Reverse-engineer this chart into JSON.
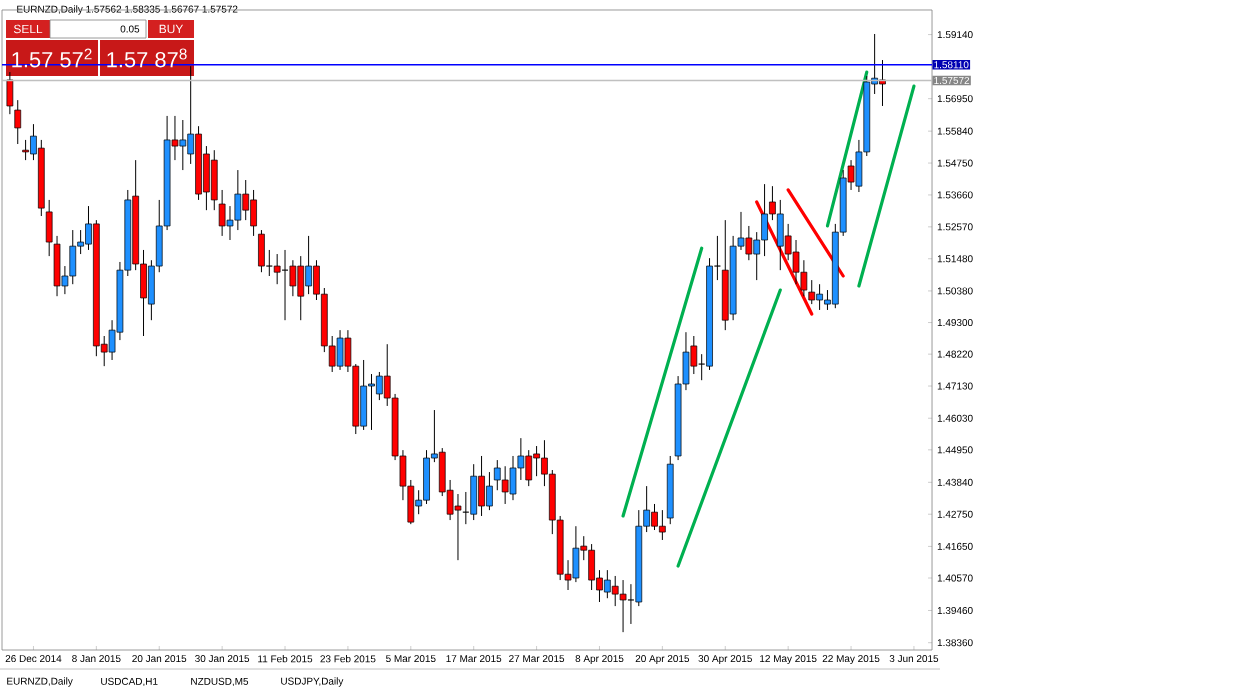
{
  "chart_data": {
    "type": "candlestick",
    "title": "EURNZD,Daily 1.57562 1.58335 1.56767 1.57572",
    "categories": [
      null,
      null,
      null,
      "26 Dec 2014",
      null,
      null,
      null,
      null,
      null,
      null,
      null,
      "8 Jan 2015",
      null,
      null,
      null,
      null,
      null,
      null,
      null,
      "20 Jan 2015",
      null,
      null,
      null,
      null,
      null,
      null,
      null,
      "30 Jan 2015",
      null,
      null,
      null,
      null,
      null,
      null,
      null,
      "11 Feb 2015",
      null,
      null,
      null,
      null,
      null,
      null,
      null,
      "23 Feb 2015",
      null,
      null,
      null,
      null,
      null,
      null,
      null,
      "5 Mar 2015",
      null,
      null,
      null,
      null,
      null,
      null,
      null,
      "17 Mar 2015",
      null,
      null,
      null,
      null,
      null,
      null,
      null,
      "27 Mar 2015",
      null,
      null,
      null,
      null,
      null,
      null,
      null,
      "8 Apr 2015",
      null,
      null,
      null,
      null,
      null,
      null,
      null,
      "20 Apr 2015",
      null,
      null,
      null,
      null,
      null,
      null,
      null,
      "30 Apr 2015",
      null,
      null,
      null,
      null,
      null,
      null,
      null,
      "12 May 2015",
      null,
      null,
      null,
      null,
      null,
      null,
      null,
      "22 May 2015",
      null,
      null,
      null,
      null,
      null,
      null,
      null,
      "3 Jun 2015"
    ],
    "ohlc": [
      [
        1.5759,
        1.5786,
        1.5642,
        1.567
      ],
      [
        1.5656,
        1.569,
        1.554,
        1.5595
      ],
      [
        1.5519,
        1.5554,
        1.5485,
        1.5513
      ],
      [
        1.5506,
        1.5608,
        1.5485,
        1.5567
      ],
      [
        1.5526,
        1.5554,
        1.5294,
        1.5321
      ],
      [
        1.5308,
        1.5349,
        1.5157,
        1.5205
      ],
      [
        1.5198,
        1.5226,
        1.502,
        1.5055
      ],
      [
        1.5055,
        1.5123,
        1.5027,
        1.5089
      ],
      [
        1.5089,
        1.5246,
        1.5061,
        1.5191
      ],
      [
        1.5191,
        1.5246,
        1.5164,
        1.5205
      ],
      [
        1.5198,
        1.5328,
        1.5178,
        1.5267
      ],
      [
        1.5267,
        1.528,
        1.4815,
        1.485
      ],
      [
        1.4856,
        1.4884,
        1.4781,
        1.4829
      ],
      [
        1.4829,
        1.4938,
        1.4802,
        1.4904
      ],
      [
        1.4897,
        1.5137,
        1.487,
        1.5109
      ],
      [
        1.5109,
        1.5383,
        1.5089,
        1.5349
      ],
      [
        1.5362,
        1.5485,
        1.5109,
        1.513
      ],
      [
        1.513,
        1.5178,
        1.4884,
        1.5014
      ],
      [
        1.4993,
        1.5143,
        1.4938,
        1.5123
      ],
      [
        1.5123,
        1.5349,
        1.5102,
        1.526
      ],
      [
        1.526,
        1.5636,
        1.5246,
        1.5554
      ],
      [
        1.5554,
        1.5636,
        1.5485,
        1.5533
      ],
      [
        1.5533,
        1.5622,
        1.5451,
        1.5554
      ],
      [
        1.5506,
        1.5806,
        1.5472,
        1.5574
      ],
      [
        1.5574,
        1.5601,
        1.5349,
        1.5369
      ],
      [
        1.5506,
        1.5533,
        1.5314,
        1.5376
      ],
      [
        1.5485,
        1.5519,
        1.5314,
        1.5349
      ],
      [
        1.5335,
        1.5383,
        1.5226,
        1.526
      ],
      [
        1.526,
        1.5328,
        1.5212,
        1.528
      ],
      [
        1.528,
        1.5451,
        1.5246,
        1.5369
      ],
      [
        1.5369,
        1.5417,
        1.528,
        1.5314
      ],
      [
        1.5349,
        1.5383,
        1.5226,
        1.526
      ],
      [
        1.5232,
        1.5246,
        1.5102,
        1.5123
      ],
      [
        1.5123,
        1.5178,
        1.5089,
        1.5123
      ],
      [
        1.5123,
        1.5164,
        1.5061,
        1.5102
      ],
      [
        1.5109,
        1.5178,
        1.4938,
        1.5109
      ],
      [
        1.5123,
        1.5143,
        1.502,
        1.5055
      ],
      [
        1.5123,
        1.5157,
        1.4938,
        1.502
      ],
      [
        1.5055,
        1.5226,
        1.5027,
        1.5123
      ],
      [
        1.5123,
        1.5143,
        1.5007,
        1.5027
      ],
      [
        1.5027,
        1.5048,
        1.4829,
        1.485
      ],
      [
        1.485,
        1.4884,
        1.4761,
        1.4781
      ],
      [
        1.4781,
        1.4904,
        1.4768,
        1.4877
      ],
      [
        1.4877,
        1.4904,
        1.4761,
        1.4781
      ],
      [
        1.4781,
        1.4788,
        1.4549,
        1.4576
      ],
      [
        1.4576,
        1.4802,
        1.4563,
        1.4713
      ],
      [
        1.4713,
        1.4754,
        1.4563,
        1.472
      ],
      [
        1.4686,
        1.4761,
        1.4665,
        1.4747
      ],
      [
        1.4747,
        1.4856,
        1.4645,
        1.4672
      ],
      [
        1.4672,
        1.4686,
        1.446,
        1.4474
      ],
      [
        1.4474,
        1.4494,
        1.4323,
        1.4371
      ],
      [
        1.4371,
        1.4392,
        1.4241,
        1.4248
      ],
      [
        1.4303,
        1.4357,
        1.4275,
        1.4323
      ],
      [
        1.4323,
        1.4494,
        1.431,
        1.4467
      ],
      [
        1.4467,
        1.4631,
        1.4453,
        1.4481
      ],
      [
        1.4487,
        1.4501,
        1.4337,
        1.4351
      ],
      [
        1.4357,
        1.4392,
        1.4255,
        1.4275
      ],
      [
        1.4303,
        1.4344,
        1.4118,
        1.4289
      ],
      [
        1.4282,
        1.4351,
        1.4241,
        1.4282
      ],
      [
        1.4275,
        1.4446,
        1.4255,
        1.4405
      ],
      [
        1.4405,
        1.4474,
        1.4269,
        1.4303
      ],
      [
        1.4303,
        1.4419,
        1.4289,
        1.4371
      ],
      [
        1.4392,
        1.446,
        1.4357,
        1.4433
      ],
      [
        1.4392,
        1.4439,
        1.431,
        1.4351
      ],
      [
        1.4344,
        1.4474,
        1.4323,
        1.4433
      ],
      [
        1.4433,
        1.4535,
        1.4392,
        1.4474
      ],
      [
        1.4474,
        1.4494,
        1.4371,
        1.4392
      ],
      [
        1.4481,
        1.4508,
        1.4405,
        1.4467
      ],
      [
        1.4467,
        1.4528,
        1.4371,
        1.4412
      ],
      [
        1.4412,
        1.4426,
        1.4207,
        1.4255
      ],
      [
        1.4255,
        1.4269,
        1.405,
        1.407
      ],
      [
        1.407,
        1.4118,
        1.4016,
        1.405
      ],
      [
        1.4057,
        1.4234,
        1.4043,
        1.4159
      ],
      [
        1.4166,
        1.42,
        1.4118,
        1.4152
      ],
      [
        1.4152,
        1.4173,
        1.4016,
        1.405
      ],
      [
        1.4057,
        1.4084,
        1.3975,
        1.4016
      ],
      [
        1.4009,
        1.4084,
        1.3988,
        1.405
      ],
      [
        1.4029,
        1.4064,
        1.3961,
        1.4002
      ],
      [
        1.4002,
        1.405,
        1.3872,
        1.3982
      ],
      [
        1.3982,
        1.4036,
        1.39,
        1.3982
      ],
      [
        1.3975,
        1.4289,
        1.3961,
        1.4234
      ],
      [
        1.4234,
        1.4371,
        1.4214,
        1.4289
      ],
      [
        1.4282,
        1.431,
        1.4221,
        1.4234
      ],
      [
        1.4234,
        1.4289,
        1.4187,
        1.4214
      ],
      [
        1.4262,
        1.4474,
        1.4241,
        1.4446
      ],
      [
        1.4474,
        1.4747,
        1.446,
        1.472
      ],
      [
        1.472,
        1.4897,
        1.4699,
        1.4829
      ],
      [
        1.485,
        1.4884,
        1.4754,
        1.4781
      ],
      [
        1.4788,
        1.4822,
        1.4733,
        1.4788
      ],
      [
        1.4781,
        1.515,
        1.4768,
        1.5123
      ],
      [
        1.5123,
        1.5226,
        1.5075,
        1.5123
      ],
      [
        1.5109,
        1.528,
        1.4904,
        1.4938
      ],
      [
        1.4959,
        1.5226,
        1.4938,
        1.5191
      ],
      [
        1.5191,
        1.5308,
        1.5178,
        1.5219
      ],
      [
        1.5219,
        1.526,
        1.5143,
        1.5164
      ],
      [
        1.5164,
        1.5239,
        1.5075,
        1.5212
      ],
      [
        1.5212,
        1.5403,
        1.5157,
        1.5301
      ],
      [
        1.5342,
        1.5396,
        1.528,
        1.5301
      ],
      [
        1.5191,
        1.5349,
        1.5109,
        1.5301
      ],
      [
        1.5226,
        1.5267,
        1.5143,
        1.5164
      ],
      [
        1.5171,
        1.5212,
        1.5061,
        1.5102
      ],
      [
        1.5102,
        1.5143,
        1.502,
        1.5041
      ],
      [
        1.5034,
        1.5075,
        1.4993,
        1.5007
      ],
      [
        1.5007,
        1.5061,
        1.4973,
        1.5027
      ],
      [
        1.4993,
        1.5041,
        1.4973,
        1.5007
      ],
      [
        1.4993,
        1.5267,
        1.4979,
        1.5239
      ],
      [
        1.5239,
        1.5451,
        1.5226,
        1.5424
      ],
      [
        1.5465,
        1.5485,
        1.5383,
        1.541
      ],
      [
        1.5396,
        1.5554,
        1.5376,
        1.5513
      ],
      [
        1.5513,
        1.5772,
        1.5499,
        1.5752
      ],
      [
        1.5745,
        1.5916,
        1.5711,
        1.5765
      ],
      [
        1.5759,
        1.5827,
        1.567,
        1.5745
      ],
      null,
      null,
      null,
      null
    ],
    "series": [
      {
        "type": "line",
        "color": "#00b050",
        "values": [
          null,
          null,
          null,
          null,
          null,
          null,
          null,
          null,
          null,
          null,
          null,
          null,
          null,
          null,
          null,
          null,
          null,
          null,
          null,
          null,
          null,
          null,
          null,
          null,
          null,
          null,
          null,
          null,
          null,
          null,
          null,
          null,
          null,
          null,
          null,
          null,
          null,
          null,
          null,
          null,
          null,
          null,
          null,
          null,
          null,
          null,
          null,
          null,
          null,
          null,
          null,
          null,
          null,
          null,
          null,
          null,
          null,
          null,
          null,
          null,
          null,
          null,
          null,
          null,
          null,
          null,
          null,
          null,
          null,
          null,
          null,
          null,
          null,
          null,
          null,
          null,
          null,
          null,
          1.4269,
          null,
          null,
          null,
          null,
          null,
          null,
          null,
          null,
          null,
          1.5184,
          null,
          null,
          null,
          null,
          null,
          null,
          null,
          null,
          null,
          null,
          null,
          null,
          null,
          null,
          null,
          null,
          null,
          null,
          null,
          null,
          null,
          null,
          null,
          null,
          null,
          null,
          null
        ]
      },
      {
        "type": "line",
        "color": "#00b050",
        "values": [
          null,
          null,
          null,
          null,
          null,
          null,
          null,
          null,
          null,
          null,
          null,
          null,
          null,
          null,
          null,
          null,
          null,
          null,
          null,
          null,
          null,
          null,
          null,
          null,
          null,
          null,
          null,
          null,
          null,
          null,
          null,
          null,
          null,
          null,
          null,
          null,
          null,
          null,
          null,
          null,
          null,
          null,
          null,
          null,
          null,
          null,
          null,
          null,
          null,
          null,
          null,
          null,
          null,
          null,
          null,
          null,
          null,
          null,
          null,
          null,
          null,
          null,
          null,
          null,
          null,
          null,
          null,
          null,
          null,
          null,
          null,
          null,
          null,
          null,
          null,
          null,
          null,
          null,
          null,
          null,
          null,
          null,
          null,
          null,
          null,
          1.4098,
          null,
          null,
          null,
          null,
          null,
          null,
          null,
          null,
          null,
          null,
          null,
          null,
          1.5041,
          null,
          null,
          null,
          null,
          null,
          null,
          null,
          null,
          null,
          null,
          null,
          null,
          null,
          null,
          null,
          null,
          null
        ]
      },
      {
        "type": "line",
        "color": "#00b050",
        "values": [
          null,
          null,
          null,
          null,
          null,
          null,
          null,
          null,
          null,
          null,
          null,
          null,
          null,
          null,
          null,
          null,
          null,
          null,
          null,
          null,
          null,
          null,
          null,
          null,
          null,
          null,
          null,
          null,
          null,
          null,
          null,
          null,
          null,
          null,
          null,
          null,
          null,
          null,
          null,
          null,
          null,
          null,
          null,
          null,
          null,
          null,
          null,
          null,
          null,
          null,
          null,
          null,
          null,
          null,
          null,
          null,
          null,
          null,
          null,
          null,
          null,
          null,
          null,
          null,
          null,
          null,
          null,
          null,
          null,
          null,
          null,
          null,
          null,
          null,
          null,
          null,
          null,
          null,
          null,
          null,
          null,
          null,
          null,
          null,
          null,
          null,
          null,
          null,
          null,
          null,
          null,
          null,
          null,
          null,
          null,
          null,
          null,
          null,
          null,
          null,
          null,
          null,
          null,
          null,
          1.526,
          null,
          null,
          null,
          null,
          1.5786,
          null,
          null,
          null,
          null,
          null,
          null
        ]
      },
      {
        "type": "line",
        "color": "#00b050",
        "values": [
          null,
          null,
          null,
          null,
          null,
          null,
          null,
          null,
          null,
          null,
          null,
          null,
          null,
          null,
          null,
          null,
          null,
          null,
          null,
          null,
          null,
          null,
          null,
          null,
          null,
          null,
          null,
          null,
          null,
          null,
          null,
          null,
          null,
          null,
          null,
          null,
          null,
          null,
          null,
          null,
          null,
          null,
          null,
          null,
          null,
          null,
          null,
          null,
          null,
          null,
          null,
          null,
          null,
          null,
          null,
          null,
          null,
          null,
          null,
          null,
          null,
          null,
          null,
          null,
          null,
          null,
          null,
          null,
          null,
          null,
          null,
          null,
          null,
          null,
          null,
          null,
          null,
          null,
          null,
          null,
          null,
          null,
          null,
          null,
          null,
          null,
          null,
          null,
          null,
          null,
          null,
          null,
          null,
          null,
          null,
          null,
          null,
          null,
          null,
          null,
          null,
          null,
          null,
          null,
          null,
          null,
          null,
          null,
          1.5055,
          null,
          null,
          null,
          null,
          null,
          null,
          1.5738
        ]
      },
      {
        "type": "line",
        "color": "#ff0000",
        "values": [
          null,
          null,
          null,
          null,
          null,
          null,
          null,
          null,
          null,
          null,
          null,
          null,
          null,
          null,
          null,
          null,
          null,
          null,
          null,
          null,
          null,
          null,
          null,
          null,
          null,
          null,
          null,
          null,
          null,
          null,
          null,
          null,
          null,
          null,
          null,
          null,
          null,
          null,
          null,
          null,
          null,
          null,
          null,
          null,
          null,
          null,
          null,
          null,
          null,
          null,
          null,
          null,
          null,
          null,
          null,
          null,
          null,
          null,
          null,
          null,
          null,
          null,
          null,
          null,
          null,
          null,
          null,
          null,
          null,
          null,
          null,
          null,
          null,
          null,
          null,
          null,
          null,
          null,
          null,
          null,
          null,
          null,
          null,
          null,
          null,
          null,
          null,
          null,
          null,
          null,
          null,
          null,
          null,
          null,
          null,
          1.5342,
          null,
          null,
          null,
          null,
          null,
          null,
          1.4959,
          null,
          null,
          null,
          null,
          null,
          null,
          null,
          null,
          null,
          null,
          null,
          null,
          null
        ]
      },
      {
        "type": "line",
        "color": "#ff0000",
        "values": [
          null,
          null,
          null,
          null,
          null,
          null,
          null,
          null,
          null,
          null,
          null,
          null,
          null,
          null,
          null,
          null,
          null,
          null,
          null,
          null,
          null,
          null,
          null,
          null,
          null,
          null,
          null,
          null,
          null,
          null,
          null,
          null,
          null,
          null,
          null,
          null,
          null,
          null,
          null,
          null,
          null,
          null,
          null,
          null,
          null,
          null,
          null,
          null,
          null,
          null,
          null,
          null,
          null,
          null,
          null,
          null,
          null,
          null,
          null,
          null,
          null,
          null,
          null,
          null,
          null,
          null,
          null,
          null,
          null,
          null,
          null,
          null,
          null,
          null,
          null,
          null,
          null,
          null,
          null,
          null,
          null,
          null,
          null,
          null,
          null,
          null,
          null,
          null,
          null,
          null,
          null,
          null,
          null,
          null,
          null,
          null,
          null,
          null,
          null,
          1.5383,
          null,
          null,
          null,
          null,
          null,
          null,
          1.5089,
          null,
          null,
          null,
          null,
          null,
          null,
          null,
          null,
          null
        ]
      }
    ],
    "ylim": [
      1.3811,
      1.5998
    ],
    "yticks": [
      {
        "value": 1.5914,
        "label": "1.59140"
      },
      {
        "value": 1.5695,
        "label": "1.56950"
      },
      {
        "value": 1.5584,
        "label": "1.55840"
      },
      {
        "value": 1.5475,
        "label": "1.54750"
      },
      {
        "value": 1.5366,
        "label": "1.53660"
      },
      {
        "value": 1.5257,
        "label": "1.52570"
      },
      {
        "value": 1.5148,
        "label": "1.51480"
      },
      {
        "value": 1.5038,
        "label": "1.50380"
      },
      {
        "value": 1.493,
        "label": "1.49300"
      },
      {
        "value": 1.4822,
        "label": "1.48220"
      },
      {
        "value": 1.4713,
        "label": "1.47130"
      },
      {
        "value": 1.4603,
        "label": "1.46030"
      },
      {
        "value": 1.4495,
        "label": "1.44950"
      },
      {
        "value": 1.4384,
        "label": "1.43840"
      },
      {
        "value": 1.4275,
        "label": "1.42750"
      },
      {
        "value": 1.4165,
        "label": "1.41650"
      },
      {
        "value": 1.4057,
        "label": "1.40570"
      },
      {
        "value": 1.3946,
        "label": "1.39460"
      },
      {
        "value": 1.3836,
        "label": "1.38360"
      }
    ],
    "ref_lines": [
      {
        "axis": "y",
        "value": 1.5811,
        "label": "1.58110",
        "color": "#0000ff"
      },
      {
        "axis": "y",
        "value": 1.57572,
        "label": "1.57572",
        "color": "#c0c0c0"
      }
    ],
    "annotations": [
      "SELL",
      "0.05",
      "BUY",
      "1.57 57$^{2}$",
      "1.57 87$^{8}$",
      "EURNZD,Daily",
      "USDCAD,H1",
      "NZDUSD,M5",
      "USDJPY,Daily"
    ]
  }
}
